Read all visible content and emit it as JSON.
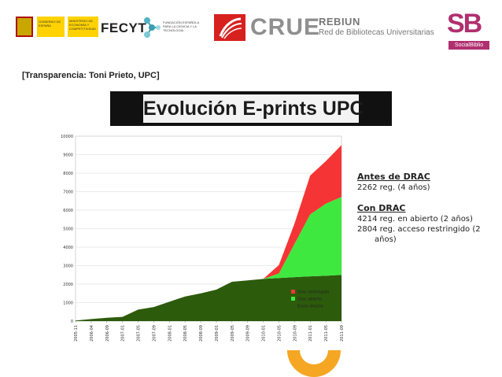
{
  "header": {
    "gov_text_1": "GOBIERNO DE ESPAÑA",
    "gov_text_2": "MINISTERIO DE ECONOMÍA Y COMPETITIVIDAD",
    "fecyt_name": "FECYT",
    "fecyt_desc": "FUNDACIÓN ESPAÑOLA PARA LA CIENCIA Y LA TECNOLOGÍA",
    "crue": "CRUE",
    "rebiun_title": "REBIUN",
    "rebiun_sub": "Red de Bibliotecas Universitarias",
    "sb_letters": "SB",
    "sb_tag": "SocialBiblio"
  },
  "caption": "[Transparencia: Toni Prieto, UPC]",
  "slide_title": "Evolución E-prints UPC",
  "annotations": {
    "before_heading": "Antes de DRAC",
    "before_value": "2262 reg. (4 años)",
    "with_heading": "Con DRAC",
    "with_line1": "4214 reg. en abierto (2 años)",
    "with_line2a": "2804 reg. acceso restringido (2",
    "with_line2b": "años)"
  },
  "colors": {
    "direct": "#2d5b0c",
    "open": "#3fe83f",
    "restricted": "#f53535",
    "sb_brand": "#b0306f",
    "deco_orange": "#f5a623"
  },
  "chart_data": {
    "type": "area",
    "stacked": true,
    "xlabel": "",
    "ylabel": "",
    "ylim": [
      0,
      10000
    ],
    "yticks": [
      0,
      1000,
      2000,
      3000,
      4000,
      5000,
      6000,
      7000,
      8000,
      9000,
      10000
    ],
    "grid": true,
    "legend_position": "bottom-right",
    "x_tick_labels": [
      "2005-11",
      "2006-04",
      "2006-09",
      "2007-01",
      "2007-05",
      "2007-09",
      "2008-01",
      "2008-05",
      "2008-09",
      "2009-01",
      "2009-05",
      "2009-09",
      "2010-01",
      "2010-05",
      "2010-09",
      "2011-01",
      "2011-05",
      "2011-09"
    ],
    "series": [
      {
        "name": "Envío directo",
        "color": "#2d5b0c",
        "values": [
          30,
          110,
          180,
          230,
          620,
          760,
          1050,
          1330,
          1500,
          1700,
          2130,
          2200,
          2280,
          2330,
          2380,
          2420,
          2450,
          2500
        ]
      },
      {
        "name": "Drac abierto",
        "color": "#3fe83f",
        "values": [
          0,
          0,
          0,
          0,
          0,
          0,
          0,
          0,
          0,
          0,
          0,
          0,
          0,
          250,
          1800,
          3350,
          3900,
          4214
        ]
      },
      {
        "name": "Drac restringido",
        "color": "#f53535",
        "values": [
          0,
          0,
          0,
          0,
          0,
          0,
          0,
          0,
          0,
          0,
          0,
          0,
          0,
          450,
          1100,
          2100,
          2300,
          2804
        ]
      }
    ]
  }
}
